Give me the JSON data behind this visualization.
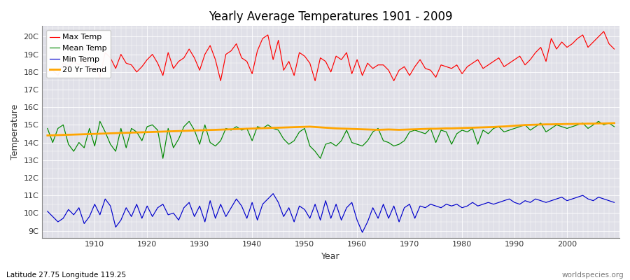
{
  "title": "Yearly Average Temperatures 1901 - 2009",
  "xlabel": "Year",
  "ylabel": "Temperature",
  "lat_lon_label": "Latitude 27.75 Longitude 119.25",
  "watermark": "worldspecies.org",
  "year_start": 1901,
  "year_end": 2009,
  "colors": {
    "max": "#ff0000",
    "mean": "#008800",
    "min": "#0000cc",
    "trend": "#ffa500"
  },
  "fig_bg_color": "#ffffff",
  "plot_bg_color": "#e0e0e8",
  "grid_color": "#ffffff",
  "yticks": [
    9,
    10,
    11,
    12,
    13,
    14,
    15,
    16,
    17,
    18,
    19,
    20
  ],
  "ylim": [
    8.6,
    20.6
  ],
  "xlim": [
    1900,
    2010
  ],
  "xticks": [
    1910,
    1920,
    1930,
    1940,
    1950,
    1960,
    1970,
    1980,
    1990,
    2000
  ],
  "legend_labels": [
    "Max Temp",
    "Mean Temp",
    "Min Temp",
    "20 Yr Trend"
  ],
  "max_temps": [
    18.0,
    18.1,
    17.8,
    18.5,
    18.3,
    18.6,
    18.4,
    18.7,
    18.1,
    18.5,
    17.7,
    19.1,
    18.8,
    18.2,
    19.0,
    18.5,
    18.4,
    18.0,
    18.3,
    18.7,
    19.0,
    18.5,
    17.8,
    19.1,
    18.2,
    18.6,
    18.8,
    19.3,
    18.8,
    18.1,
    19.0,
    19.5,
    18.7,
    17.5,
    19.0,
    19.2,
    19.6,
    18.8,
    18.6,
    17.9,
    19.2,
    19.9,
    20.1,
    18.7,
    19.8,
    18.1,
    18.6,
    17.8,
    19.1,
    18.9,
    18.5,
    17.5,
    18.8,
    18.6,
    18.0,
    18.9,
    18.7,
    19.1,
    17.9,
    18.7,
    17.8,
    18.5,
    18.2,
    18.4,
    18.4,
    18.1,
    17.5,
    18.1,
    18.3,
    17.8,
    18.3,
    18.7,
    18.2,
    18.1,
    17.7,
    18.4,
    18.3,
    18.2,
    18.4,
    17.9,
    18.3,
    18.5,
    18.7,
    18.2,
    18.4,
    18.6,
    18.8,
    18.3,
    18.5,
    18.7,
    18.9,
    18.4,
    18.7,
    19.1,
    19.4,
    18.6,
    19.9,
    19.3,
    19.7,
    19.4,
    19.6,
    19.9,
    20.1,
    19.4,
    19.7,
    20.0,
    20.3,
    19.6,
    19.3
  ],
  "mean_temps": [
    14.8,
    14.0,
    14.8,
    15.0,
    13.9,
    13.5,
    14.0,
    13.7,
    14.8,
    13.8,
    15.2,
    14.6,
    13.9,
    13.5,
    14.8,
    13.7,
    14.8,
    14.6,
    14.1,
    14.9,
    15.0,
    14.7,
    13.1,
    14.8,
    13.7,
    14.2,
    14.9,
    15.2,
    14.7,
    13.9,
    15.0,
    14.0,
    13.8,
    14.1,
    14.8,
    14.7,
    14.9,
    14.7,
    14.8,
    14.1,
    14.9,
    14.8,
    15.0,
    14.8,
    14.7,
    14.2,
    13.9,
    14.1,
    14.6,
    14.8,
    13.8,
    13.5,
    13.1,
    13.9,
    14.0,
    13.8,
    14.1,
    14.7,
    14.0,
    13.9,
    13.8,
    14.1,
    14.6,
    14.8,
    14.1,
    14.0,
    13.8,
    13.9,
    14.1,
    14.6,
    14.7,
    14.6,
    14.5,
    14.8,
    14.0,
    14.7,
    14.6,
    13.9,
    14.5,
    14.7,
    14.6,
    14.8,
    13.9,
    14.7,
    14.5,
    14.8,
    14.9,
    14.6,
    14.7,
    14.8,
    14.9,
    15.0,
    14.7,
    14.9,
    15.1,
    14.6,
    14.8,
    15.0,
    14.9,
    14.8,
    14.9,
    15.0,
    15.1,
    14.8,
    15.0,
    15.2,
    15.0,
    15.1,
    14.9
  ],
  "min_temps": [
    10.1,
    9.8,
    9.5,
    9.7,
    10.2,
    9.9,
    10.3,
    9.4,
    9.8,
    10.5,
    9.9,
    10.8,
    10.4,
    9.2,
    9.6,
    10.3,
    9.8,
    10.5,
    9.7,
    10.4,
    9.8,
    10.3,
    10.5,
    9.9,
    10.0,
    9.6,
    10.3,
    10.6,
    9.8,
    10.4,
    9.5,
    10.7,
    9.7,
    10.5,
    9.8,
    10.3,
    10.8,
    10.4,
    9.7,
    10.6,
    9.6,
    10.5,
    10.8,
    11.1,
    10.6,
    9.8,
    10.3,
    9.5,
    10.4,
    10.2,
    9.7,
    10.5,
    9.6,
    10.7,
    9.7,
    10.5,
    9.6,
    10.3,
    10.6,
    9.6,
    8.9,
    9.5,
    10.3,
    9.7,
    10.5,
    9.7,
    10.4,
    9.5,
    10.3,
    10.5,
    9.7,
    10.4,
    10.3,
    10.5,
    10.4,
    10.3,
    10.5,
    10.4,
    10.5,
    10.3,
    10.4,
    10.6,
    10.4,
    10.5,
    10.6,
    10.5,
    10.6,
    10.7,
    10.8,
    10.6,
    10.5,
    10.7,
    10.6,
    10.8,
    10.7,
    10.6,
    10.7,
    10.8,
    10.9,
    10.7,
    10.8,
    10.9,
    11.0,
    10.8,
    10.7,
    10.9,
    10.8,
    10.7,
    10.6
  ],
  "trend": [
    14.4,
    14.41,
    14.42,
    14.43,
    14.44,
    14.45,
    14.46,
    14.47,
    14.48,
    14.49,
    14.5,
    14.51,
    14.52,
    14.53,
    14.54,
    14.55,
    14.56,
    14.57,
    14.58,
    14.59,
    14.6,
    14.61,
    14.62,
    14.63,
    14.64,
    14.65,
    14.66,
    14.67,
    14.68,
    14.69,
    14.7,
    14.71,
    14.72,
    14.73,
    14.74,
    14.75,
    14.76,
    14.77,
    14.78,
    14.79,
    14.8,
    14.81,
    14.82,
    14.83,
    14.84,
    14.85,
    14.86,
    14.87,
    14.88,
    14.89,
    14.9,
    14.88,
    14.86,
    14.84,
    14.82,
    14.8,
    14.79,
    14.78,
    14.77,
    14.76,
    14.75,
    14.74,
    14.73,
    14.72,
    14.73,
    14.74,
    14.73,
    14.72,
    14.73,
    14.74,
    14.75,
    14.76,
    14.77,
    14.78,
    14.78,
    14.79,
    14.8,
    14.8,
    14.81,
    14.82,
    14.83,
    14.84,
    14.85,
    14.86,
    14.87,
    14.88,
    14.9,
    14.91,
    14.93,
    14.95,
    14.97,
    14.99,
    15.0,
    15.01,
    15.02,
    15.03,
    15.03,
    15.04,
    15.04,
    15.05,
    15.05,
    15.06,
    15.06,
    15.07,
    15.07,
    15.08,
    15.08,
    15.09,
    15.1
  ]
}
